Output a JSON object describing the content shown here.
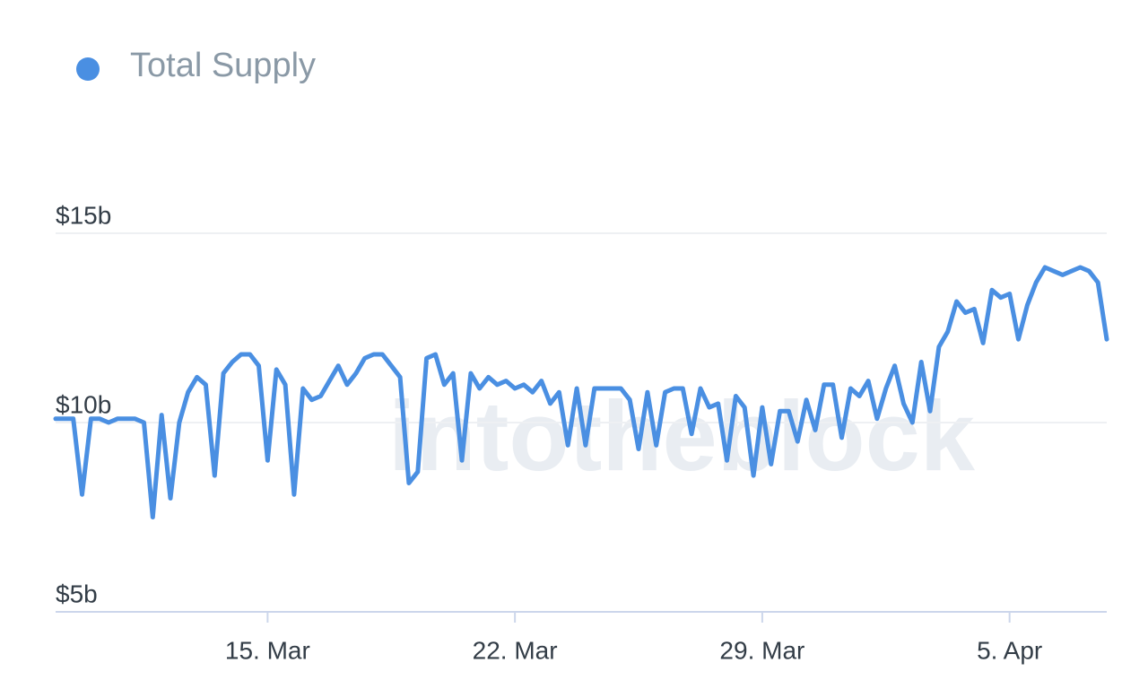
{
  "chart_data": {
    "type": "line",
    "watermark": "intotheblock",
    "categories": [
      null,
      null,
      null,
      null,
      null,
      null,
      null,
      null,
      null,
      null,
      null,
      null,
      null,
      null,
      null,
      null,
      null,
      null,
      null,
      null,
      null,
      null,
      null,
      null,
      "15. Mar",
      null,
      null,
      null,
      null,
      null,
      null,
      null,
      null,
      null,
      null,
      null,
      null,
      null,
      null,
      null,
      null,
      null,
      null,
      null,
      null,
      null,
      null,
      null,
      null,
      null,
      null,
      null,
      "22. Mar",
      null,
      null,
      null,
      null,
      null,
      null,
      null,
      null,
      null,
      null,
      null,
      null,
      null,
      null,
      null,
      null,
      null,
      null,
      null,
      null,
      null,
      null,
      null,
      null,
      null,
      null,
      null,
      "29. Mar",
      null,
      null,
      null,
      null,
      null,
      null,
      null,
      null,
      null,
      null,
      null,
      null,
      null,
      null,
      null,
      null,
      null,
      null,
      null,
      null,
      null,
      null,
      null,
      null,
      null,
      null,
      null,
      "5. Apr",
      null,
      null,
      null,
      null,
      null,
      null,
      null,
      null,
      null,
      null,
      null
    ],
    "series": [
      {
        "name": "Total Supply",
        "color": "#4a8fe2",
        "values": [
          10.1,
          10.1,
          10.1,
          8.1,
          10.1,
          10.1,
          10.0,
          10.1,
          10.1,
          10.1,
          10.0,
          7.5,
          10.2,
          8.0,
          10.0,
          10.8,
          11.2,
          11.0,
          8.6,
          11.3,
          11.6,
          11.8,
          11.8,
          11.5,
          9.0,
          11.4,
          11.0,
          8.1,
          10.9,
          10.6,
          10.7,
          11.1,
          11.5,
          11.0,
          11.3,
          11.7,
          11.8,
          11.8,
          11.5,
          11.2,
          8.4,
          8.7,
          11.7,
          11.8,
          11.0,
          11.3,
          9.0,
          11.3,
          10.9,
          11.2,
          11.0,
          11.1,
          10.9,
          11.0,
          10.8,
          11.1,
          10.5,
          10.8,
          9.4,
          10.9,
          9.4,
          10.9,
          10.9,
          10.9,
          10.9,
          10.6,
          9.3,
          10.8,
          9.4,
          10.8,
          10.9,
          10.9,
          9.7,
          10.9,
          10.4,
          10.5,
          9.0,
          10.7,
          10.4,
          8.6,
          10.4,
          8.9,
          10.3,
          10.3,
          9.5,
          10.6,
          9.8,
          11.0,
          11.0,
          9.6,
          10.9,
          10.7,
          11.1,
          10.1,
          10.9,
          11.5,
          10.5,
          10.0,
          11.6,
          10.3,
          12.0,
          12.4,
          13.2,
          12.9,
          13.0,
          12.1,
          13.5,
          13.3,
          13.4,
          12.2,
          13.1,
          13.7,
          14.1,
          14.0,
          13.9,
          14.0,
          14.1,
          14.0,
          13.7,
          12.2
        ]
      }
    ],
    "ylim": [
      5,
      15
    ],
    "yticks": [
      {
        "value": 5,
        "label": "$5b"
      },
      {
        "value": 10,
        "label": "$10b"
      },
      {
        "value": 15,
        "label": "$15b"
      }
    ],
    "grid": true
  }
}
